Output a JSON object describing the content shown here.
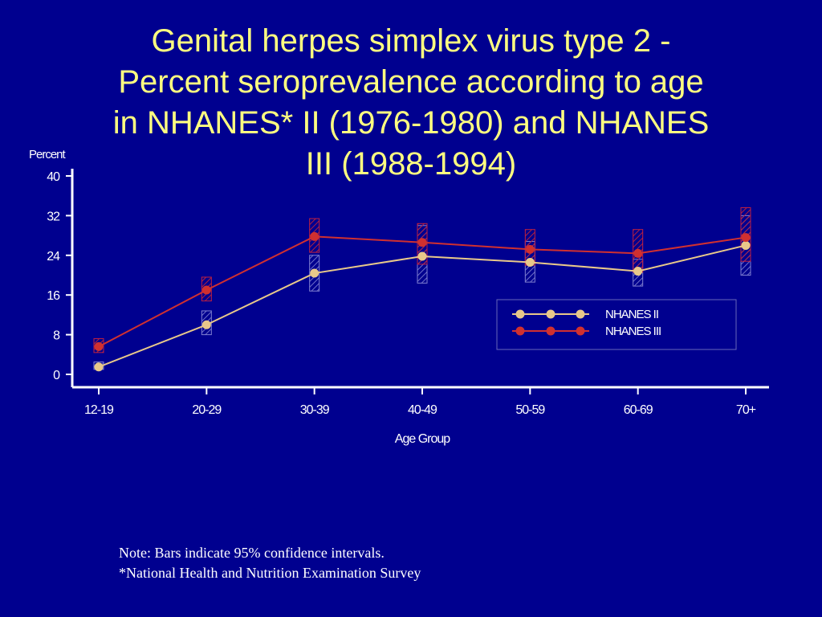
{
  "slide": {
    "title_lines": [
      "Genital herpes simplex virus type 2 -",
      "Percent seroprevalence according to age",
      "in NHANES* II (1976-1980) and NHANES",
      "III (1988-1994)"
    ],
    "notes": [
      "Note:  Bars indicate 95% confidence intervals.",
      "*National Health and Nutrition Examination Survey"
    ]
  },
  "chart_data": {
    "type": "line",
    "title": "",
    "xlabel": "Age Group",
    "ylabel": "Percent",
    "categories": [
      "12-19",
      "20-29",
      "30-39",
      "40-49",
      "50-59",
      "60-69",
      "70+"
    ],
    "ylim": [
      0,
      40
    ],
    "yticks": [
      0,
      8,
      16,
      24,
      32,
      40
    ],
    "grid": false,
    "legend_position": "right",
    "series": [
      {
        "name": "NHANES II",
        "color": "#e8c88a",
        "values": [
          1.5,
          10.0,
          20.4,
          23.8,
          22.6,
          20.8,
          26.0
        ],
        "ci_low": [
          1.0,
          8.0,
          16.8,
          18.4,
          18.6,
          17.8,
          20.0
        ],
        "ci_high": [
          2.5,
          12.8,
          24.0,
          30.0,
          26.8,
          23.2,
          32.0
        ]
      },
      {
        "name": "NHANES III",
        "color": "#d03030",
        "values": [
          5.6,
          17.0,
          27.8,
          26.6,
          25.2,
          24.4,
          27.6
        ],
        "ci_low": [
          4.4,
          14.8,
          24.6,
          22.2,
          22.0,
          20.6,
          22.8
        ],
        "ci_high": [
          7.2,
          19.6,
          31.4,
          30.4,
          29.2,
          29.2,
          33.6
        ]
      }
    ]
  }
}
